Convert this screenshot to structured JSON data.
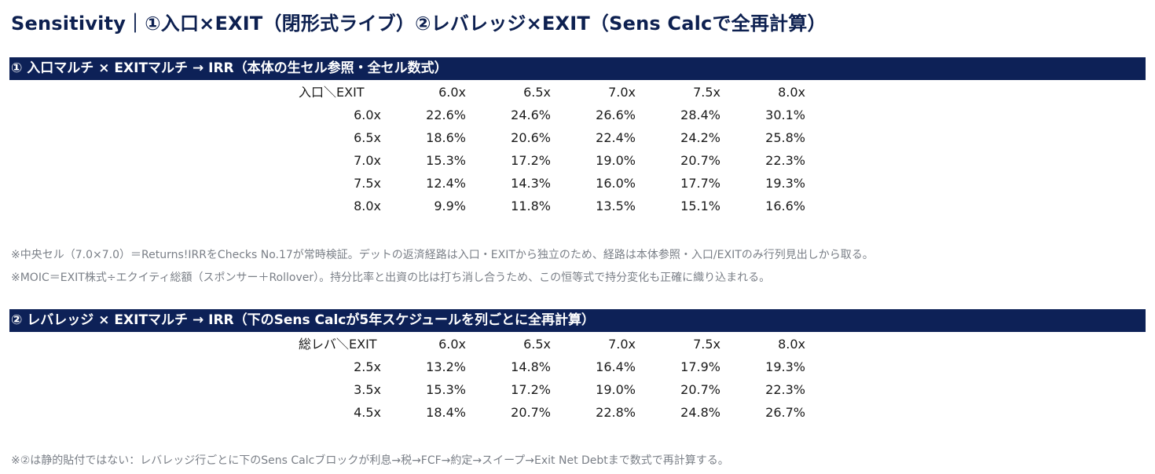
{
  "title": "Sensitivity｜①入口×EXIT（閉形式ライブ）②レバレッジ×EXIT（Sens Calcで全再計算）",
  "section1": {
    "header": "① 入口マルチ × EXITマルチ → IRR（本体の生セル参照・全セル数式）",
    "corner": "入口＼EXIT",
    "columns": [
      "6.0x",
      "6.5x",
      "7.0x",
      "7.5x",
      "8.0x"
    ],
    "rows": [
      {
        "label": "6.0x",
        "values": [
          "22.6%",
          "24.6%",
          "26.6%",
          "28.4%",
          "30.1%"
        ]
      },
      {
        "label": "6.5x",
        "values": [
          "18.6%",
          "20.6%",
          "22.4%",
          "24.2%",
          "25.8%"
        ]
      },
      {
        "label": "7.0x",
        "values": [
          "15.3%",
          "17.2%",
          "19.0%",
          "20.7%",
          "22.3%"
        ]
      },
      {
        "label": "7.5x",
        "values": [
          "12.4%",
          "14.3%",
          "16.0%",
          "17.7%",
          "19.3%"
        ]
      },
      {
        "label": "8.0x",
        "values": [
          "9.9%",
          "11.8%",
          "13.5%",
          "15.1%",
          "16.6%"
        ]
      }
    ],
    "notes": [
      "※中央セル（7.0×7.0）＝Returns!IRRをChecks No.17が常時検証。デットの返済経路は入口・EXITから独立のため、経路は本体参照・入口/EXITのみ行列見出しから取る。",
      "※MOIC＝EXIT株式÷エクイティ総額（スポンサー＋Rollover）。持分比率と出資の比は打ち消し合うため、この恒等式で持分変化も正確に織り込まれる。"
    ]
  },
  "section2": {
    "header": "② レバレッジ × EXITマルチ → IRR（下のSens Calcが5年スケジュールを列ごとに全再計算）",
    "corner": "総レバ＼EXIT",
    "columns": [
      "6.0x",
      "6.5x",
      "7.0x",
      "7.5x",
      "8.0x"
    ],
    "rows": [
      {
        "label": "2.5x",
        "values": [
          "13.2%",
          "14.8%",
          "16.4%",
          "17.9%",
          "19.3%"
        ]
      },
      {
        "label": "3.5x",
        "values": [
          "15.3%",
          "17.2%",
          "19.0%",
          "20.7%",
          "22.3%"
        ]
      },
      {
        "label": "4.5x",
        "values": [
          "18.4%",
          "20.7%",
          "22.8%",
          "24.8%",
          "26.7%"
        ]
      }
    ],
    "notes": [
      "※②は静的貼付ではない：レバレッジ行ごとに下のSens Calcブロックが利息→税→FCF→約定→スイープ→Exit Net Debtまで数式で再計算する。"
    ]
  }
}
